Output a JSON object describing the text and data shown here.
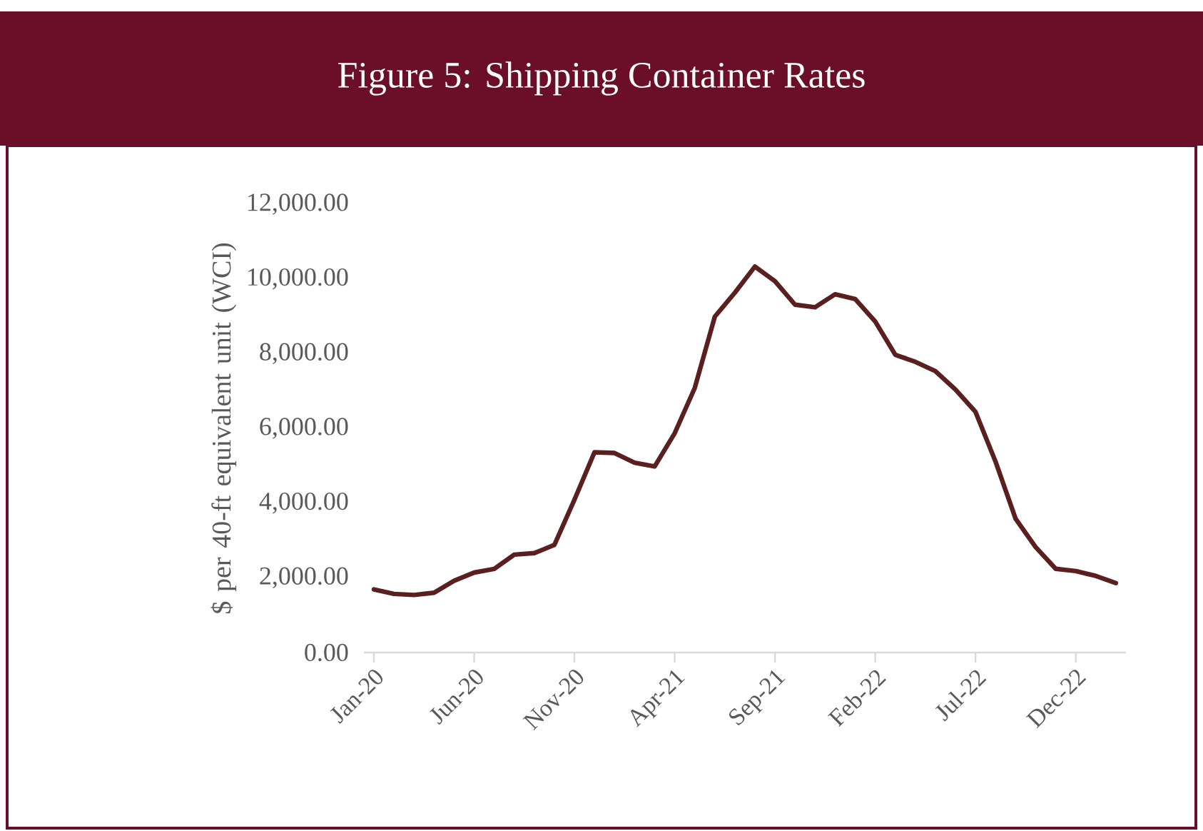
{
  "chart_data": {
    "type": "line",
    "title": "Figure 5: Shipping Container Rates",
    "ylabel": "$ per 40-ft equivalent unit (WCI)",
    "categories": [
      "Jan-20",
      null,
      null,
      null,
      null,
      "Jun-20",
      null,
      null,
      null,
      null,
      "Nov-20",
      null,
      null,
      null,
      null,
      "Apr-21",
      null,
      null,
      null,
      null,
      "Sep-21",
      null,
      null,
      null,
      null,
      "Feb-22",
      null,
      null,
      null,
      null,
      "Jul-22",
      null,
      null,
      null,
      null,
      "Dec-22",
      null,
      null
    ],
    "series": [
      {
        "color": "#5a1f1f",
        "values": [
          1690,
          1570,
          1540,
          1600,
          1920,
          2140,
          2240,
          2620,
          2660,
          2880,
          4090,
          5360,
          5340,
          5080,
          4980,
          5870,
          7080,
          8990,
          9630,
          10330,
          9940,
          9310,
          9240,
          9590,
          9460,
          8860,
          7970,
          7780,
          7530,
          7040,
          6440,
          5110,
          3580,
          2820,
          2240,
          2180,
          2050,
          1860
        ]
      }
    ],
    "ylim": [
      0,
      12000
    ],
    "yticks": [
      {
        "value": 0,
        "label": "0.00"
      },
      {
        "value": 2000,
        "label": "2,000.00"
      },
      {
        "value": 4000,
        "label": "4,000.00"
      },
      {
        "value": 6000,
        "label": "6,000.00"
      },
      {
        "value": 8000,
        "label": "8,000.00"
      },
      {
        "value": 10000,
        "label": "10,000.00"
      },
      {
        "value": 12000,
        "label": "12,000.00"
      }
    ],
    "grid": false,
    "marker": "none",
    "line_style": "solid"
  }
}
